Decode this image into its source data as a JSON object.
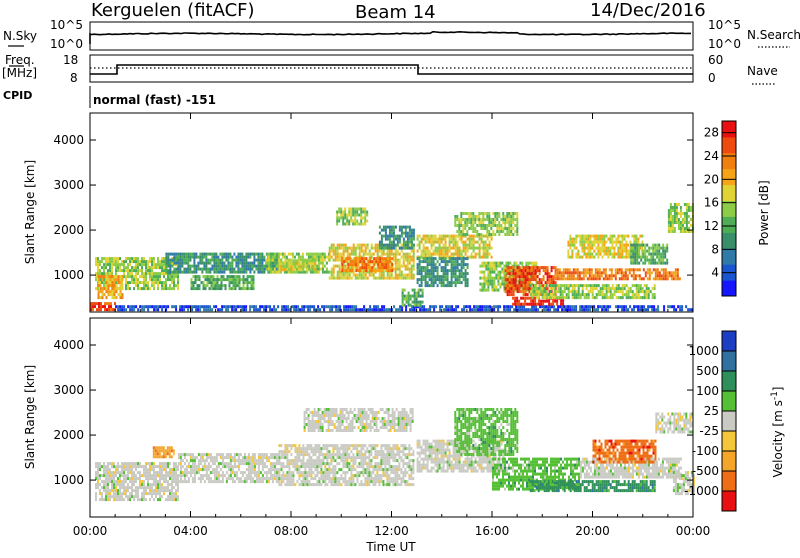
{
  "header": {
    "station": "Kerguelen (fitACF)",
    "beam": "Beam 14",
    "date": "14/Dec/2016"
  },
  "status_panel": {
    "noise": {
      "left_label": "N.Sky",
      "left_ticks": [
        "10^5",
        "10^0"
      ],
      "right_label": "N.Search",
      "right_ticks": [
        "10^5",
        "10^0"
      ]
    },
    "freq": {
      "left_label_1": "Freq.",
      "left_label_2": "[MHz]",
      "left_ticks": [
        "18",
        "8"
      ],
      "right_label": "Nave",
      "right_ticks": [
        "60",
        "0"
      ]
    },
    "cpid": {
      "label": "CPID",
      "value": "normal (fast) -151"
    }
  },
  "chart_data": [
    {
      "type": "heatmap",
      "name": "power",
      "ylabel": "Slant Range [km]",
      "xlabel": "",
      "ylim": [
        180,
        4600
      ],
      "y_ticks": [
        1000,
        2000,
        3000,
        4000
      ],
      "xlim_hours": [
        0,
        24
      ],
      "x_ticks": [
        "00:00",
        "04:00",
        "08:00",
        "12:00",
        "16:00",
        "20:00",
        "00:00"
      ],
      "colorbar": {
        "label": "Power [dB]",
        "ticks": [
          "4",
          "8",
          "12",
          "16",
          "20",
          "24",
          "28"
        ],
        "range": [
          0,
          30
        ],
        "colors": [
          "#1515ff",
          "#1a55d0",
          "#2f7aa8",
          "#3a8f6a",
          "#4fae55",
          "#8ccc46",
          "#dfd336",
          "#f5a418",
          "#f07f10",
          "#ef4a10",
          "#e81010"
        ]
      },
      "echo_regions": [
        {
          "t0": 0.0,
          "t1": 1.0,
          "r0": 250,
          "r1": 400,
          "level": 9
        },
        {
          "t0": 1.0,
          "t1": 24.0,
          "r0": 250,
          "r1": 330,
          "level": 1
        },
        {
          "t0": 0.2,
          "t1": 3.5,
          "r0": 700,
          "r1": 1400,
          "level": 5
        },
        {
          "t0": 0.3,
          "t1": 1.3,
          "r0": 500,
          "r1": 1000,
          "level": 7
        },
        {
          "t0": 3.0,
          "t1": 7.5,
          "r0": 1100,
          "r1": 1500,
          "level": 3
        },
        {
          "t0": 4.0,
          "t1": 6.5,
          "r0": 700,
          "r1": 1000,
          "level": 4
        },
        {
          "t0": 7.0,
          "t1": 9.5,
          "r0": 1050,
          "r1": 1500,
          "level": 5
        },
        {
          "t0": 7.5,
          "t1": 9.0,
          "r0": 1150,
          "r1": 1350,
          "level": 6
        },
        {
          "t0": 9.5,
          "t1": 12.9,
          "r0": 950,
          "r1": 1700,
          "level": 6
        },
        {
          "t0": 10.0,
          "t1": 12.0,
          "r0": 1100,
          "r1": 1400,
          "level": 8
        },
        {
          "t0": 9.8,
          "t1": 11.0,
          "r0": 2150,
          "r1": 2500,
          "level": 5
        },
        {
          "t0": 11.5,
          "t1": 12.9,
          "r0": 1600,
          "r1": 2100,
          "level": 3
        },
        {
          "t0": 12.4,
          "t1": 13.2,
          "r0": 350,
          "r1": 700,
          "level": 4
        },
        {
          "t0": 13.0,
          "t1": 16.0,
          "r0": 1400,
          "r1": 1900,
          "level": 6
        },
        {
          "t0": 13.0,
          "t1": 15.0,
          "r0": 800,
          "r1": 1400,
          "level": 3
        },
        {
          "t0": 14.5,
          "t1": 17.0,
          "r0": 1900,
          "r1": 2400,
          "level": 5
        },
        {
          "t0": 15.5,
          "t1": 17.8,
          "r0": 700,
          "r1": 1300,
          "level": 5
        },
        {
          "t0": 16.5,
          "t1": 18.5,
          "r0": 600,
          "r1": 1200,
          "level": 9
        },
        {
          "t0": 18.5,
          "t1": 23.5,
          "r0": 900,
          "r1": 1150,
          "level": 8
        },
        {
          "t0": 16.8,
          "t1": 18.8,
          "r0": 380,
          "r1": 520,
          "level": 10
        },
        {
          "t0": 17.5,
          "t1": 22.5,
          "r0": 500,
          "r1": 800,
          "level": 5
        },
        {
          "t0": 19.0,
          "t1": 22.0,
          "r0": 1400,
          "r1": 1900,
          "level": 6
        },
        {
          "t0": 21.5,
          "t1": 23.0,
          "r0": 1300,
          "r1": 1700,
          "level": 4
        },
        {
          "t0": 23.0,
          "t1": 24.0,
          "r0": 2000,
          "r1": 2600,
          "level": 5
        }
      ]
    },
    {
      "type": "heatmap",
      "name": "velocity",
      "ylabel": "Slant Range [km]",
      "xlabel": "Time UT",
      "ylim": [
        180,
        4600
      ],
      "y_ticks": [
        1000,
        2000,
        3000,
        4000
      ],
      "xlim_hours": [
        0,
        24
      ],
      "x_ticks": [
        "00:00",
        "04:00",
        "08:00",
        "12:00",
        "16:00",
        "20:00",
        "00:00"
      ],
      "colorbar": {
        "label": "Velocity [m s^-1]",
        "ticks": [
          "1000",
          "500",
          "100",
          "25",
          "-25",
          "-100",
          "-500",
          "-1000"
        ],
        "colors": [
          "#1c3ec2",
          "#2f72a0",
          "#2f8f5a",
          "#55c035",
          "#cacac4",
          "#f4c63a",
          "#f5a52a",
          "#ef6e15",
          "#e81010"
        ]
      },
      "echo_regions": [
        {
          "t0": 0.2,
          "t1": 3.5,
          "r0": 600,
          "r1": 1400,
          "level": 4
        },
        {
          "t0": 3.5,
          "t1": 7.5,
          "r0": 1000,
          "r1": 1600,
          "level": 4
        },
        {
          "t0": 2.5,
          "t1": 3.3,
          "r0": 1500,
          "r1": 1750,
          "level": 6
        },
        {
          "t0": 7.5,
          "t1": 12.9,
          "r0": 900,
          "r1": 1800,
          "level": 4
        },
        {
          "t0": 8.5,
          "t1": 12.8,
          "r0": 2100,
          "r1": 2600,
          "level": 4
        },
        {
          "t0": 13.0,
          "t1": 16.5,
          "r0": 1200,
          "r1": 1900,
          "level": 4
        },
        {
          "t0": 14.5,
          "t1": 17.0,
          "r0": 1600,
          "r1": 2600,
          "level": 3
        },
        {
          "t0": 16.0,
          "t1": 19.5,
          "r0": 800,
          "r1": 1500,
          "level": 3
        },
        {
          "t0": 17.5,
          "t1": 22.5,
          "r0": 800,
          "r1": 1000,
          "level": 2
        },
        {
          "t0": 19.5,
          "t1": 23.5,
          "r0": 1100,
          "r1": 1500,
          "level": 4
        },
        {
          "t0": 20.0,
          "t1": 22.5,
          "r0": 1400,
          "r1": 1900,
          "level": 7
        },
        {
          "t0": 22.5,
          "t1": 24.0,
          "r0": 2100,
          "r1": 2500,
          "level": 4
        },
        {
          "t0": 23.2,
          "t1": 24.0,
          "r0": 700,
          "r1": 1200,
          "level": 4
        }
      ]
    }
  ]
}
